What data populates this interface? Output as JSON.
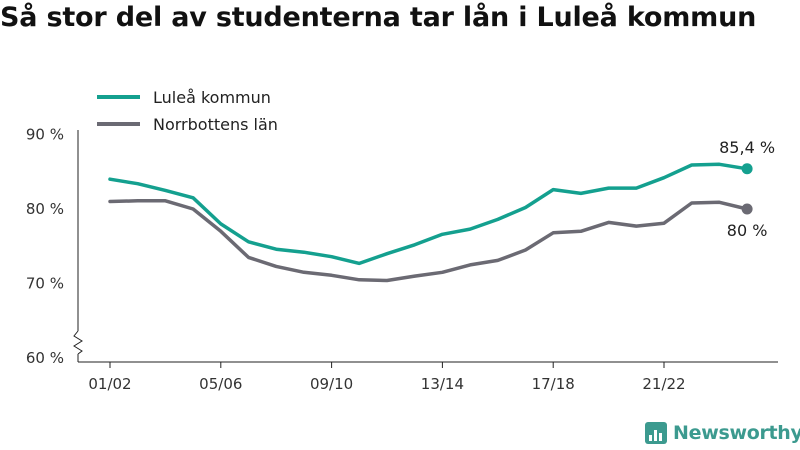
{
  "title": "Så stor del av studenterna tar lån i Luleå kommun",
  "brand": {
    "name": "Newsworthy",
    "icon": "bar-chart-icon",
    "color": "#3c9a8f"
  },
  "chart_data": {
    "type": "line",
    "x": [
      "01/02",
      "02/03",
      "03/04",
      "04/05",
      "05/06",
      "06/07",
      "07/08",
      "08/09",
      "09/10",
      "10/11",
      "11/12",
      "12/13",
      "13/14",
      "14/15",
      "15/16",
      "16/17",
      "17/18",
      "18/19",
      "19/20",
      "20/21",
      "21/22",
      "22/23",
      "23/24",
      "24/25"
    ],
    "series": [
      {
        "name": "Luleå kommun",
        "color": "#14a08f",
        "values": [
          84.0,
          83.4,
          82.5,
          81.5,
          78.0,
          75.6,
          74.6,
          74.2,
          73.6,
          72.7,
          74.0,
          75.2,
          76.6,
          77.3,
          78.6,
          80.2,
          82.6,
          82.1,
          82.8,
          82.8,
          84.2,
          85.9,
          86.0,
          85.4
        ]
      },
      {
        "name": "Norrbottens län",
        "color": "#6b6a73",
        "values": [
          81.0,
          81.1,
          81.1,
          80.0,
          77.0,
          73.5,
          72.3,
          71.5,
          71.1,
          70.5,
          70.4,
          71.0,
          71.5,
          72.5,
          73.1,
          74.5,
          76.8,
          77.0,
          78.2,
          77.7,
          78.1,
          80.8,
          80.9,
          80.0
        ]
      }
    ],
    "xticks": [
      "01/02",
      "05/06",
      "09/10",
      "13/14",
      "17/18",
      "21/22"
    ],
    "yticks": [
      "60 %",
      "70 %",
      "80 %",
      "90 %"
    ],
    "ylim": [
      60,
      90
    ],
    "end_labels": [
      "85,4 %",
      "80 %"
    ],
    "legend": "top-left",
    "grid": "none",
    "axis_break": true
  }
}
